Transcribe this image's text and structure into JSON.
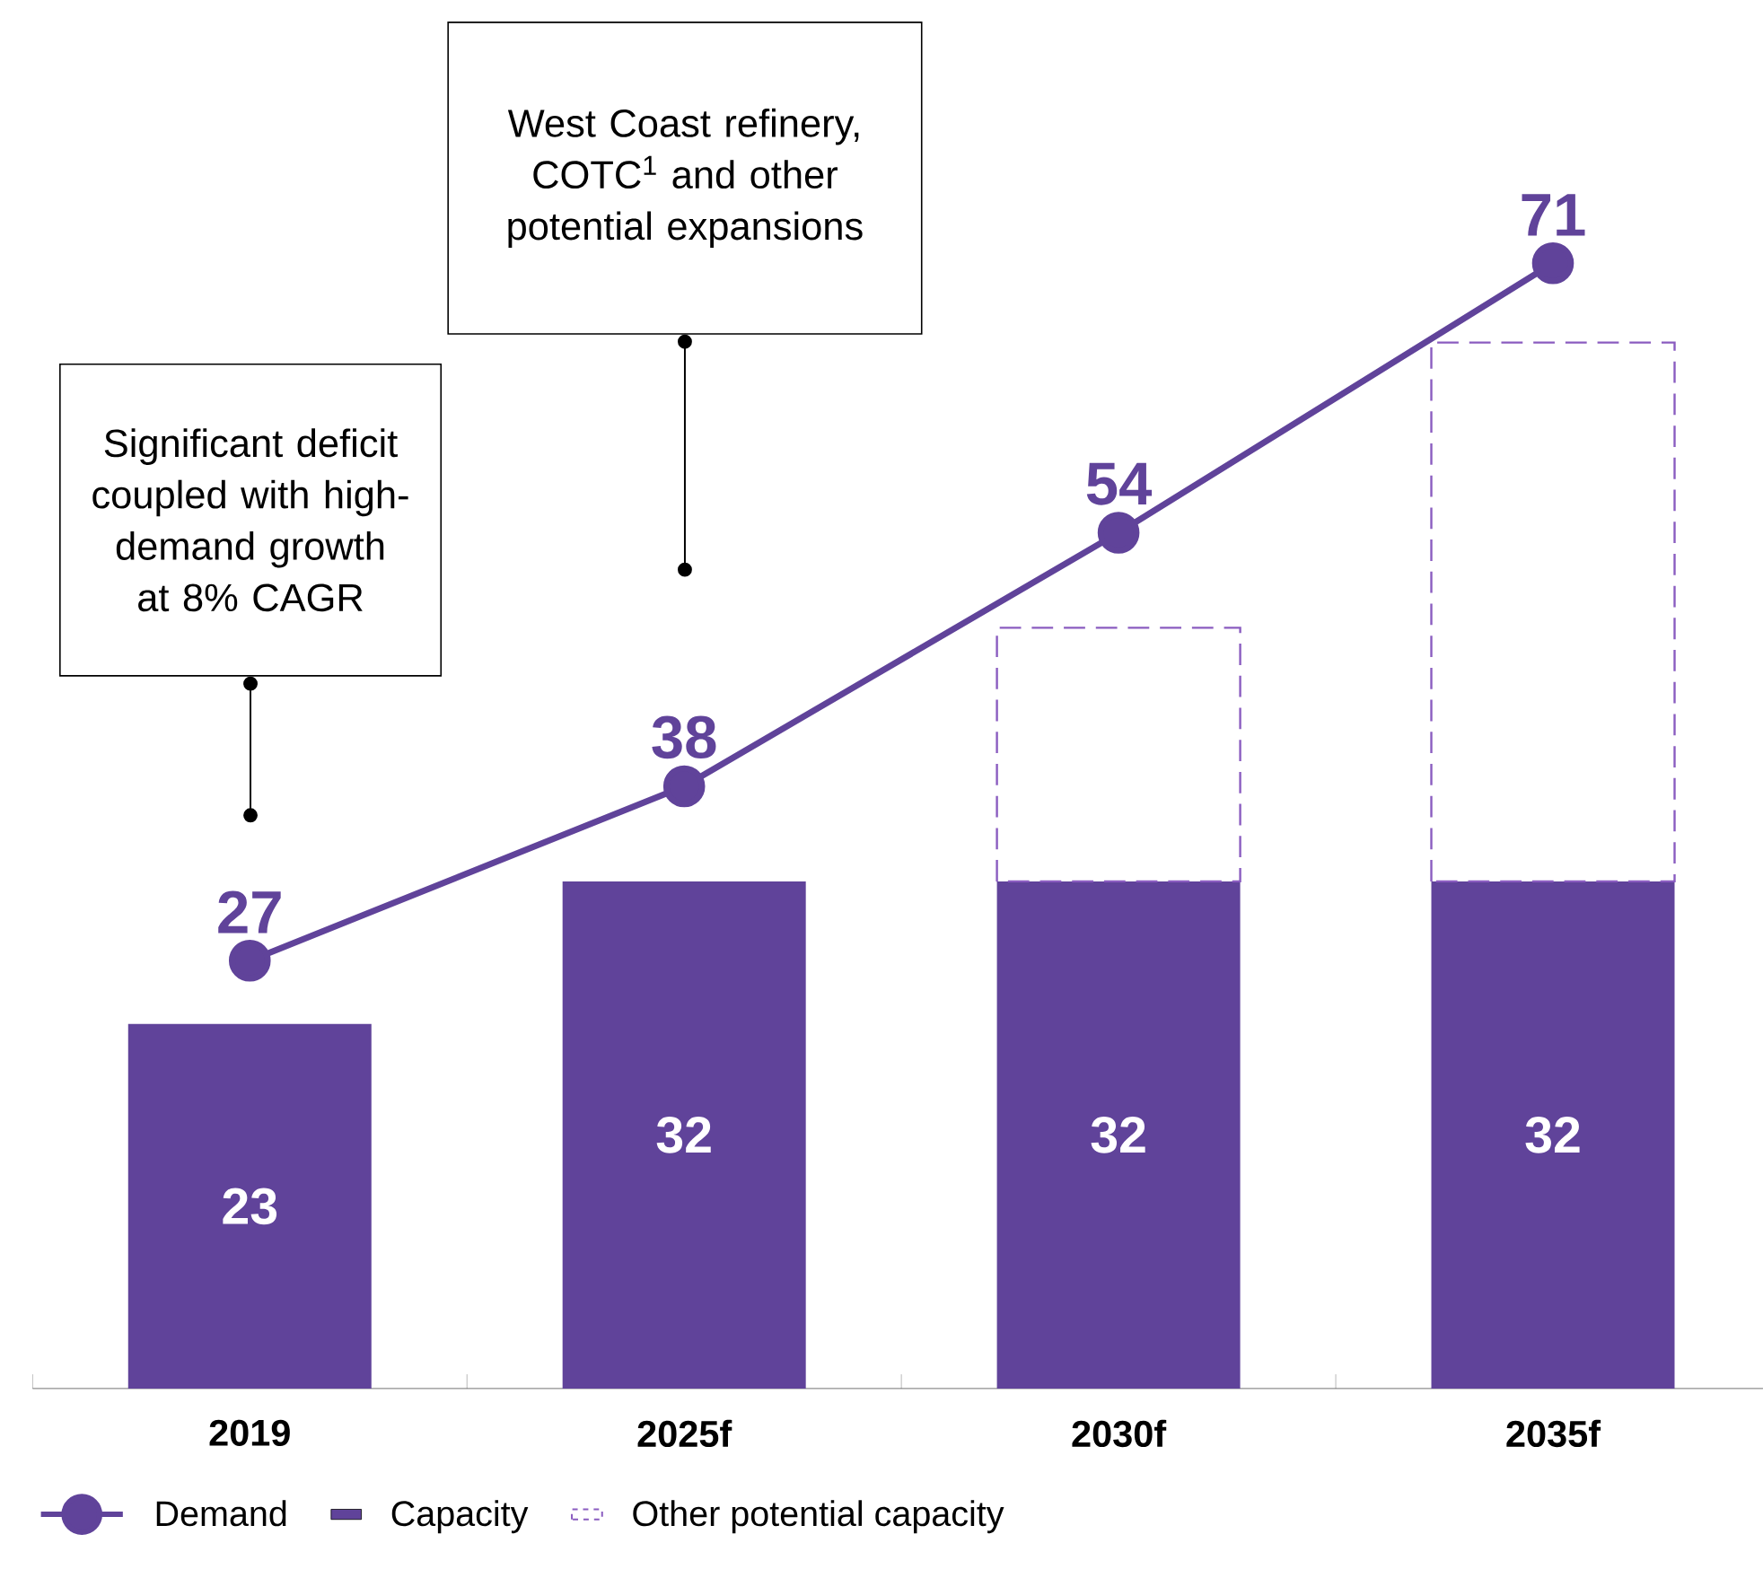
{
  "chart_data": {
    "type": "bar",
    "categories": [
      "2019",
      "2025f",
      "2030f",
      "2035f"
    ],
    "stacked": true,
    "tick_labels": "x",
    "legend": "bottom left",
    "series": [
      {
        "name": "Capacity",
        "color": "#60439a",
        "values": [
          23,
          32,
          32,
          32
        ],
        "value_labels": [
          "23",
          "32",
          "32",
          "32"
        ]
      },
      {
        "name": "Other potential capacity",
        "color": "#8a5cc0",
        "line_style": "dashed",
        "values": [
          null,
          null,
          16,
          34
        ]
      },
      {
        "name": "Demand",
        "type": "line",
        "color": "#60439a",
        "marker": "circle",
        "values": [
          27,
          38,
          54,
          71
        ],
        "value_labels": [
          "27",
          "38",
          "54",
          "71"
        ]
      }
    ],
    "annotations": [
      "Significant deficit coupled with high- demand growth at 8% CAGR",
      "West Coast refinery, COTC$^{1}$ and other potential expansions"
    ]
  }
}
